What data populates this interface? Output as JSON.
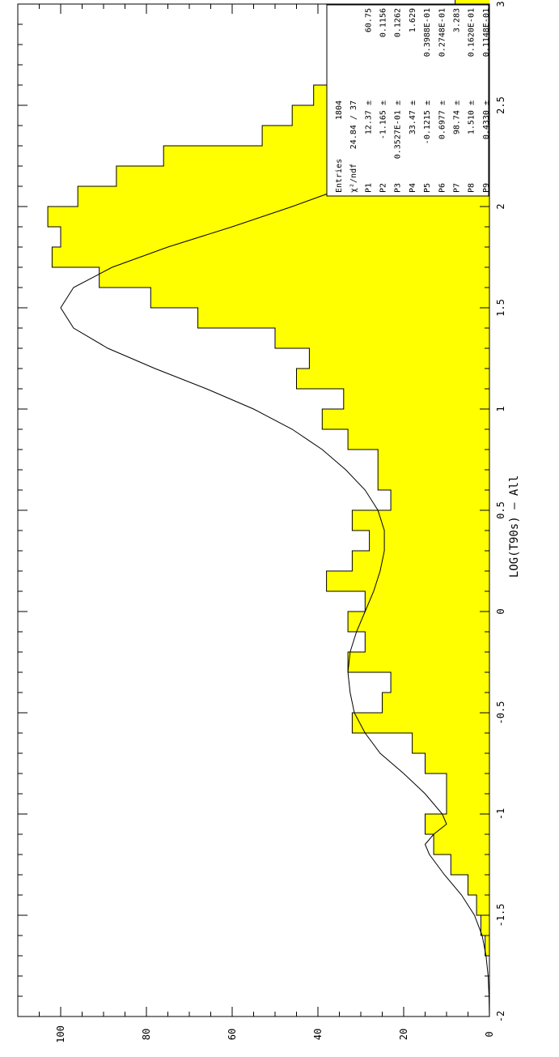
{
  "chart_data": {
    "type": "bar",
    "orientation": "rotated-90-clockwise",
    "xlabel": "LOG(T90s) — All",
    "ylabel": "",
    "xlim": [
      -2,
      3
    ],
    "ylim": [
      0,
      110
    ],
    "x_ticks": [
      "-2",
      "-1.5",
      "-1",
      "-0.5",
      "0",
      "0.5",
      "1",
      "1.5",
      "2",
      "2.5",
      "3"
    ],
    "y_ticks": [
      "0",
      "20",
      "40",
      "60",
      "80",
      "100"
    ],
    "bin_width": 0.1,
    "bins_start": -2,
    "values": [
      0,
      0,
      0,
      1,
      2,
      3,
      5,
      9,
      13,
      15,
      10,
      10,
      15,
      18,
      32,
      25,
      23,
      33,
      29,
      33,
      29,
      38,
      32,
      28,
      32,
      23,
      26,
      26,
      33,
      39,
      34,
      45,
      42,
      50,
      68,
      79,
      91,
      102,
      100,
      103,
      96,
      87,
      76,
      53,
      46,
      41,
      27,
      22,
      17,
      12,
      8,
      5,
      3,
      1,
      0,
      0,
      0,
      0,
      0,
      0
    ],
    "fit_curve": {
      "x": [
        -2.0,
        -1.9,
        -1.8,
        -1.7,
        -1.6,
        -1.5,
        -1.4,
        -1.3,
        -1.2,
        -1.15,
        -1.1,
        -1.05,
        -1.0,
        -0.9,
        -0.8,
        -0.7,
        -0.6,
        -0.5,
        -0.4,
        -0.3,
        -0.2,
        -0.1,
        0.0,
        0.1,
        0.2,
        0.3,
        0.4,
        0.5,
        0.6,
        0.7,
        0.8,
        0.9,
        1.0,
        1.1,
        1.2,
        1.3,
        1.4,
        1.5,
        1.6,
        1.7,
        1.8,
        1.9,
        2.0,
        2.1,
        2.2,
        2.3,
        2.4,
        2.5,
        2.6,
        2.7,
        2.8,
        2.9
      ],
      "y": [
        0,
        0.1,
        0.3,
        0.8,
        1.7,
        3.5,
        6.5,
        10.5,
        14,
        15,
        13,
        10,
        11,
        15,
        20,
        25.5,
        29,
        31.5,
        32.5,
        33,
        32.5,
        31,
        29,
        27,
        25.5,
        24.5,
        24.5,
        26,
        29,
        33.5,
        39,
        46,
        55,
        66,
        78,
        89,
        97,
        100,
        97,
        88,
        75,
        60,
        46,
        33,
        22.5,
        14.5,
        9,
        5.2,
        2.8,
        1.3,
        0.6,
        0.2
      ]
    },
    "stats_box": {
      "rows": [
        {
          "label": "Entries",
          "value": "1804",
          "error": ""
        },
        {
          "label": "χ²/ndf",
          "value": "24.84  /  37",
          "error": ""
        },
        {
          "label": "P1",
          "value": "12.37",
          "error": "60.75"
        },
        {
          "label": "P2",
          "value": "-1.165",
          "error": "0.1156"
        },
        {
          "label": "P3",
          "value": "0.3527E-01",
          "error": "0.1262"
        },
        {
          "label": "P4",
          "value": "33.47",
          "error": "1.629"
        },
        {
          "label": "P5",
          "value": "-0.1215",
          "error": "0.3988E-01"
        },
        {
          "label": "P6",
          "value": "0.6977",
          "error": "0.2748E-01"
        },
        {
          "label": "P7",
          "value": "98.74",
          "error": "3.283"
        },
        {
          "label": "P8",
          "value": "1.510",
          "error": "0.1620E-01"
        },
        {
          "label": "P9",
          "value": "0.4330",
          "error": "0.1148E-01"
        }
      ]
    },
    "colors": {
      "fill": "#ffff00",
      "line": "#000000"
    }
  }
}
